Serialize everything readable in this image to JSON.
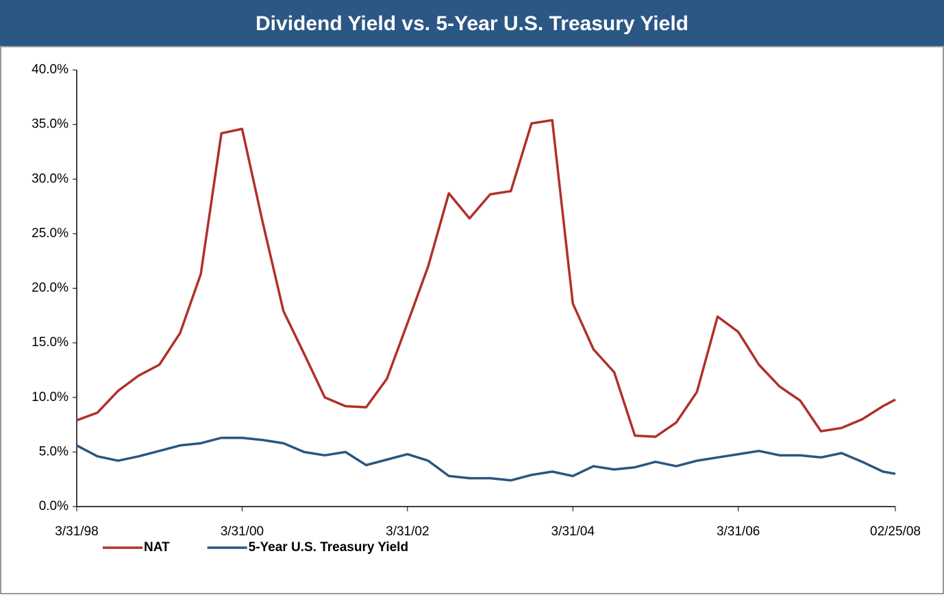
{
  "chart_data": {
    "type": "line",
    "title": "Dividend Yield vs. 5-Year U.S. Treasury Yield",
    "x": [
      1998.25,
      1998.5,
      1998.75,
      1999.0,
      1999.25,
      1999.5,
      1999.75,
      2000.0,
      2000.25,
      2000.5,
      2000.75,
      2001.0,
      2001.25,
      2001.5,
      2001.75,
      2002.0,
      2002.25,
      2002.5,
      2002.75,
      2003.0,
      2003.25,
      2003.5,
      2003.75,
      2004.0,
      2004.25,
      2004.5,
      2004.75,
      2005.0,
      2005.25,
      2005.5,
      2005.75,
      2006.0,
      2006.25,
      2006.5,
      2006.75,
      2007.0,
      2007.25,
      2007.5,
      2007.75,
      2008.0,
      2008.15
    ],
    "series": [
      {
        "name": "NAT",
        "color": "#b0302a",
        "values": [
          7.9,
          8.6,
          10.6,
          12.0,
          13.0,
          15.9,
          21.3,
          34.2,
          34.6,
          26.0,
          17.9,
          14.0,
          10.0,
          9.2,
          9.1,
          11.7,
          16.8,
          22.0,
          28.7,
          26.4,
          28.6,
          28.9,
          35.1,
          35.4,
          18.6,
          14.4,
          12.3,
          6.5,
          6.4,
          7.7,
          10.5,
          17.4,
          16.0,
          13.0,
          11.0,
          9.7,
          6.9,
          7.2,
          8.0,
          9.2,
          9.8
        ]
      },
      {
        "name": "5-Year U.S. Treasury Yield",
        "color": "#2b5680",
        "values": [
          5.6,
          4.6,
          4.2,
          4.6,
          5.1,
          5.6,
          5.8,
          6.3,
          6.3,
          6.1,
          5.8,
          5.0,
          4.7,
          5.0,
          3.8,
          4.3,
          4.8,
          4.2,
          2.8,
          2.6,
          2.6,
          2.4,
          2.9,
          3.2,
          2.8,
          3.7,
          3.4,
          3.6,
          4.1,
          3.7,
          4.2,
          4.5,
          4.8,
          5.1,
          4.7,
          4.7,
          4.5,
          4.9,
          4.1,
          3.2,
          3.0
        ]
      }
    ],
    "xlim": [
      1998.25,
      2008.15
    ],
    "xticks": [
      {
        "value": 1998.25,
        "label": "3/31/98"
      },
      {
        "value": 2000.25,
        "label": "3/31/00"
      },
      {
        "value": 2002.25,
        "label": "3/31/02"
      },
      {
        "value": 2004.25,
        "label": "3/31/04"
      },
      {
        "value": 2006.25,
        "label": "3/31/06"
      },
      {
        "value": 2008.15,
        "label": "02/25/08"
      }
    ],
    "ylim": [
      0,
      40
    ],
    "yticks": [
      {
        "value": 0,
        "label": "0.0%"
      },
      {
        "value": 5,
        "label": "5.0%"
      },
      {
        "value": 10,
        "label": "10.0%"
      },
      {
        "value": 15,
        "label": "15.0%"
      },
      {
        "value": 20,
        "label": "20.0%"
      },
      {
        "value": 25,
        "label": "25.0%"
      },
      {
        "value": 30,
        "label": "30.0%"
      },
      {
        "value": 35,
        "label": "35.0%"
      },
      {
        "value": 40,
        "label": "40.0%"
      }
    ],
    "grid": false,
    "legend": "bottom-left"
  }
}
